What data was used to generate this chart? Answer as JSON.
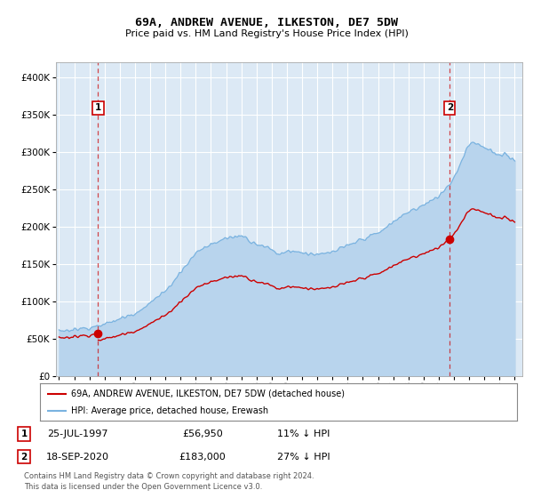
{
  "title": "69A, ANDREW AVENUE, ILKESTON, DE7 5DW",
  "subtitle": "Price paid vs. HM Land Registry's House Price Index (HPI)",
  "yticks": [
    0,
    50000,
    100000,
    150000,
    200000,
    250000,
    300000,
    350000,
    400000
  ],
  "ytick_labels": [
    "£0",
    "£50K",
    "£100K",
    "£150K",
    "£200K",
    "£250K",
    "£300K",
    "£350K",
    "£400K"
  ],
  "ylim": [
    0,
    420000
  ],
  "plot_bg_color": "#dce9f5",
  "grid_color": "#ffffff",
  "hpi_color": "#7ab3e0",
  "hpi_fill_color": "#b8d4ed",
  "price_color": "#cc0000",
  "dashed_color": "#cc0000",
  "sale1_date_str": "25-JUL-1997",
  "sale1_price": 56950,
  "sale1_hpi_pct": "11% ↓ HPI",
  "sale2_date_str": "18-SEP-2020",
  "sale2_price": 183000,
  "sale2_hpi_pct": "27% ↓ HPI",
  "legend1_text": "69A, ANDREW AVENUE, ILKESTON, DE7 5DW (detached house)",
  "legend2_text": "HPI: Average price, detached house, Erewash",
  "footer1": "Contains HM Land Registry data © Crown copyright and database right 2024.",
  "footer2": "This data is licensed under the Open Government Licence v3.0.",
  "sale1_year": 1997.57,
  "sale1_value": 56950,
  "sale2_year": 2020.72,
  "sale2_value": 183000,
  "xlim_min": 1994.8,
  "xlim_max": 2025.5
}
